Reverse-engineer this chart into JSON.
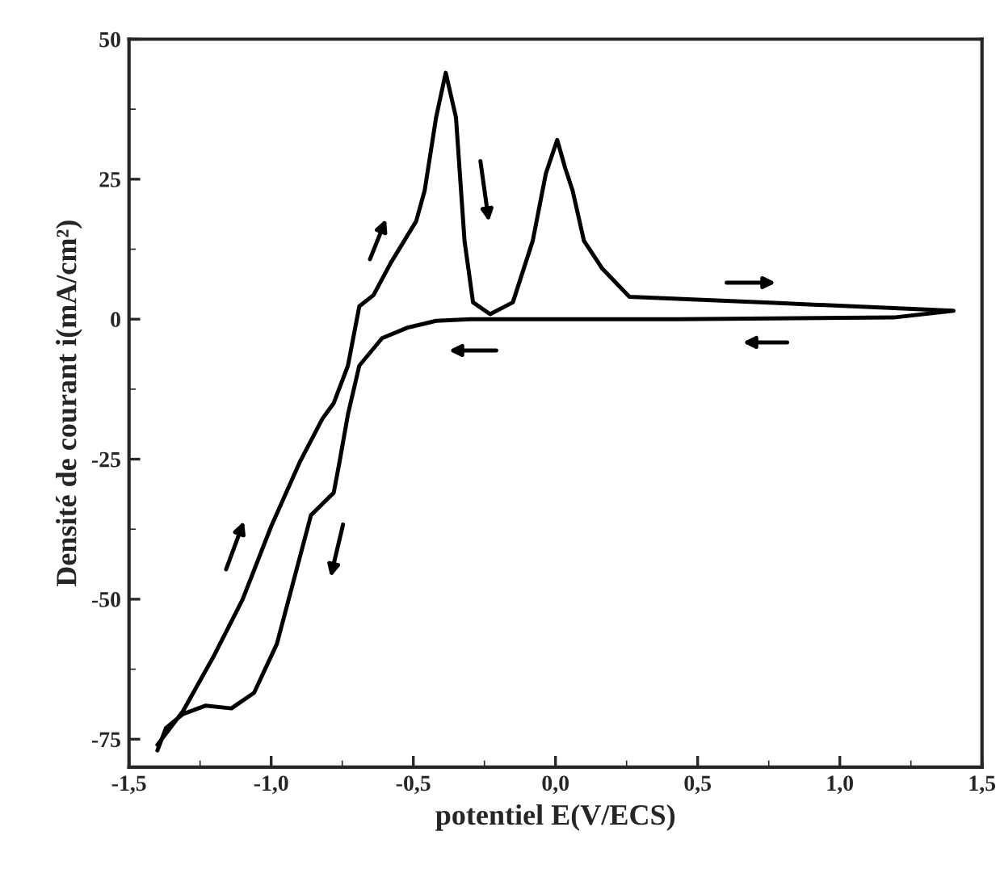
{
  "chart_data": {
    "type": "line",
    "xlabel": "potentiel E(V/ECS)",
    "ylabel": "Densité de courant i(mA/cm²)",
    "xlim": [
      -1.5,
      1.5
    ],
    "ylim": [
      -80,
      50
    ],
    "xticks": [
      {
        "value": -1.5,
        "label": "-1,5"
      },
      {
        "value": -1.0,
        "label": "-1,0"
      },
      {
        "value": -0.5,
        "label": "-0,5"
      },
      {
        "value": 0.0,
        "label": "0,0"
      },
      {
        "value": 0.5,
        "label": "0,5"
      },
      {
        "value": 1.0,
        "label": "1,0"
      },
      {
        "value": 1.5,
        "label": "1,5"
      }
    ],
    "yticks": [
      -75,
      -50,
      -25,
      0,
      25,
      50
    ],
    "grid": false,
    "legend": false,
    "marker": "none",
    "line_style": "solid",
    "series": [
      {
        "color": "#000000",
        "x": [
          -1.4,
          -1.31,
          -1.2,
          -1.1,
          -1.0,
          -0.9,
          -0.82,
          -0.78,
          -0.73,
          -0.69,
          -0.64,
          -0.58,
          -0.49,
          -0.46,
          -0.42,
          -0.386,
          -0.35,
          -0.32,
          -0.29,
          -0.23,
          -0.15,
          -0.08,
          -0.034,
          0.006,
          0.034,
          0.06,
          0.1,
          0.165,
          0.26,
          0.77,
          1.4,
          1.19,
          0.43,
          -0.3,
          -0.42,
          -0.52,
          -0.61,
          -0.69,
          -0.73,
          -0.76,
          -0.78,
          -0.82,
          -0.86,
          -0.92,
          -0.98,
          -1.06,
          -1.14,
          -1.23,
          -1.31,
          -1.37,
          -1.4
        ],
        "values": [
          -76,
          -70,
          -60,
          -50,
          -37,
          -25.6,
          -17.8,
          -15,
          -8.3,
          2.3,
          4.3,
          10,
          17.5,
          23,
          36,
          44,
          36,
          14,
          3,
          0.9,
          3,
          14,
          26,
          32,
          27,
          23,
          14,
          9,
          4,
          2.9,
          1.5,
          0.3,
          0,
          0,
          -0.3,
          -1.5,
          -3.4,
          -8.3,
          -17,
          -25.6,
          -31,
          -33,
          -35,
          -46.5,
          -58,
          -66.7,
          -69.5,
          -69,
          -70.5,
          -73,
          -77
        ]
      }
    ]
  }
}
